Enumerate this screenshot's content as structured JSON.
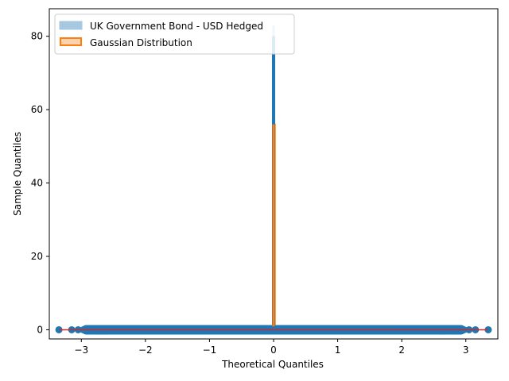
{
  "chart_data": {
    "type": "scatter",
    "title": "",
    "xlabel": "Theoretical Quantiles",
    "ylabel": "Sample Quantiles",
    "xlim": [
      -3.5,
      3.5
    ],
    "ylim": [
      -2.5,
      87.5
    ],
    "xticks": [
      -3,
      -2,
      -1,
      0,
      1,
      2,
      3
    ],
    "xtick_labels": [
      "−3",
      "−2",
      "−1",
      "0",
      "1",
      "2",
      "3"
    ],
    "yticks": [
      0,
      20,
      40,
      60,
      80
    ],
    "ytick_labels": [
      "0",
      "20",
      "40",
      "60",
      "80"
    ],
    "grid": false,
    "legend_position": "top-left",
    "series": [
      {
        "name": "UK Government Bond - USD Hedged",
        "kind": "histogram",
        "color": "#a6c8e0",
        "x": 0.0,
        "value": 83,
        "edge_color": "#a6c8e0"
      },
      {
        "name": "Gaussian Distribution",
        "kind": "histogram",
        "color": "#f9d3b6",
        "edge_color": "#ff7f0e",
        "x": 0.0,
        "value": 56
      }
    ],
    "qq_points": {
      "color": "#1f77b4",
      "x": [
        -3.35,
        -3.15,
        -3.05,
        -2.97,
        -2.9,
        -2.82,
        -2.75,
        -2.67,
        -2.6,
        -2.5,
        -2.4,
        -2.3,
        -2.2,
        -2.1,
        -2.0,
        -1.8,
        -1.6,
        -1.4,
        -1.2,
        -1.0,
        -0.8,
        -0.6,
        -0.4,
        -0.2,
        0.0,
        0.2,
        0.4,
        0.6,
        0.8,
        1.0,
        1.2,
        1.4,
        1.6,
        1.8,
        2.0,
        2.1,
        2.2,
        2.3,
        2.4,
        2.5,
        2.6,
        2.67,
        2.75,
        2.82,
        2.9,
        2.97,
        3.05,
        3.15,
        3.35
      ],
      "y": [
        0,
        0,
        0,
        0,
        0,
        0,
        0,
        0,
        0,
        0,
        0,
        0,
        0,
        0,
        0,
        0,
        0,
        0,
        0,
        0,
        0,
        0,
        0,
        0,
        0,
        0,
        0,
        0,
        0,
        0,
        0,
        0,
        0,
        0,
        0,
        0,
        0,
        0,
        0,
        0,
        0,
        0,
        0,
        0,
        0,
        0,
        0,
        0,
        0
      ]
    },
    "reference_line": {
      "color": "#d62728",
      "x": [
        -3.35,
        3.35
      ],
      "y": [
        0,
        0
      ]
    },
    "spike": {
      "color": "#1f77b4",
      "x": 0.0,
      "y_bottom": 0,
      "y_top": 80
    }
  },
  "legend": {
    "items": [
      {
        "label": "UK Government Bond - USD Hedged",
        "fill": "#a6c8e0",
        "stroke": "#a6c8e0"
      },
      {
        "label": "Gaussian Distribution",
        "fill": "#fbd2b0",
        "stroke": "#ff7f0e"
      }
    ]
  }
}
